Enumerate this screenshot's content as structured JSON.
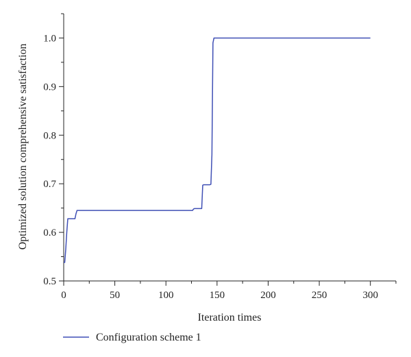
{
  "chart_data": {
    "type": "line",
    "title": "",
    "xlabel": "Iteration times",
    "ylabel": "Optimized solution comprehensive satisfaction",
    "xlim": [
      0,
      325
    ],
    "ylim": [
      0.5,
      1.05
    ],
    "x_ticks": [
      "0",
      "50",
      "100",
      "150",
      "200",
      "250",
      "300"
    ],
    "y_ticks": [
      "0.5",
      "0.6",
      "0.7",
      "0.8",
      "0.9",
      "1.0"
    ],
    "x_tick_values": [
      0,
      50,
      100,
      150,
      200,
      250,
      300
    ],
    "y_tick_values": [
      0.5,
      0.6,
      0.7,
      0.8,
      0.9,
      1.0
    ],
    "grid": false,
    "legend_position": "bottom",
    "series": [
      {
        "name": "Configuration scheme 1",
        "color": "#3f4fb5",
        "x": [
          0,
          1,
          2,
          3,
          4,
          5,
          6,
          7,
          8,
          9,
          10,
          11,
          12,
          13,
          14,
          15,
          20,
          50,
          100,
          125,
          126,
          127,
          128,
          130,
          133,
          134,
          135,
          136,
          137,
          140,
          143,
          144,
          145,
          146,
          147,
          148,
          150,
          200,
          250,
          300
        ],
        "y": [
          0.538,
          0.538,
          0.565,
          0.6,
          0.628,
          0.628,
          0.628,
          0.628,
          0.628,
          0.628,
          0.628,
          0.628,
          0.638,
          0.645,
          0.645,
          0.645,
          0.645,
          0.645,
          0.645,
          0.645,
          0.645,
          0.648,
          0.649,
          0.649,
          0.649,
          0.649,
          0.649,
          0.697,
          0.698,
          0.698,
          0.698,
          0.699,
          0.76,
          0.99,
          1.0,
          1.0,
          1.0,
          1.0,
          1.0,
          1.0
        ]
      }
    ]
  }
}
